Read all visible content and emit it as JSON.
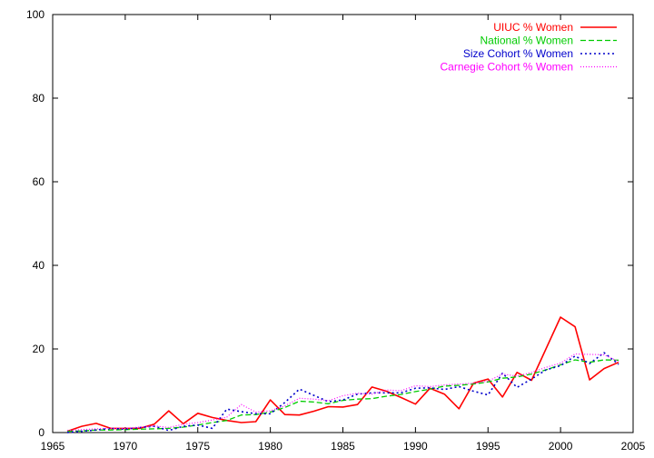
{
  "chart_data": {
    "type": "line",
    "xlim": [
      1965,
      2005
    ],
    "ylim": [
      0,
      100
    ],
    "x_ticks": [
      1965,
      1970,
      1975,
      1980,
      1985,
      1990,
      1995,
      2000,
      2005
    ],
    "y_ticks": [
      0,
      20,
      40,
      60,
      80,
      100
    ],
    "grid": false,
    "legend_position": "top-right",
    "series": [
      {
        "name": "UIUC % Women",
        "color": "#ff0000",
        "dash": "solid",
        "x": [
          1966,
          1967,
          1968,
          1969,
          1970,
          1971,
          1972,
          1973,
          1974,
          1975,
          1976,
          1977,
          1978,
          1979,
          1980,
          1981,
          1982,
          1983,
          1984,
          1985,
          1986,
          1987,
          1988,
          1989,
          1990,
          1991,
          1992,
          1993,
          1994,
          1995,
          1996,
          1997,
          1998,
          1999,
          2000,
          2001,
          2002,
          2003,
          2004
        ],
        "y": [
          0.3,
          1.5,
          2.2,
          1.0,
          1.0,
          1.0,
          2.0,
          5.2,
          2.1,
          4.6,
          3.6,
          2.9,
          2.4,
          2.6,
          7.8,
          4.3,
          4.2,
          5.1,
          6.2,
          6.1,
          6.7,
          10.9,
          9.9,
          8.4,
          6.8,
          10.6,
          9.2,
          5.7,
          11.8,
          12.8,
          8.5,
          14.4,
          12.5,
          null,
          27.6,
          25.3,
          12.6,
          15.3,
          16.8
        ]
      },
      {
        "name": "National % Women",
        "color": "#00cc00",
        "dash": "dashed",
        "x": [
          1966,
          1967,
          1968,
          1969,
          1970,
          1971,
          1972,
          1973,
          1974,
          1975,
          1976,
          1977,
          1978,
          1979,
          1980,
          1981,
          1982,
          1983,
          1984,
          1985,
          1986,
          1987,
          1988,
          1989,
          1990,
          1991,
          1992,
          1993,
          1994,
          1995,
          1996,
          1997,
          1998,
          1999,
          2000,
          2001,
          2002,
          2003,
          2004
        ],
        "y": [
          0.3,
          0.4,
          0.6,
          0.6,
          0.7,
          0.8,
          0.9,
          1.0,
          1.3,
          1.8,
          2.4,
          2.9,
          4.2,
          4.3,
          4.9,
          6.0,
          7.5,
          7.3,
          6.9,
          7.7,
          8.0,
          8.1,
          8.7,
          9.1,
          9.8,
          10.4,
          11.1,
          11.3,
          11.6,
          12.1,
          13.0,
          13.3,
          14.0,
          15.0,
          16.2,
          17.4,
          16.8,
          17.4,
          17.3
        ]
      },
      {
        "name": "Size Cohort % Women",
        "color": "#0000cc",
        "dash": "dotted",
        "x": [
          1966,
          1967,
          1968,
          1969,
          1970,
          1971,
          1972,
          1973,
          1974,
          1975,
          1976,
          1977,
          1978,
          1979,
          1980,
          1981,
          1982,
          1983,
          1984,
          1985,
          1986,
          1987,
          1988,
          1989,
          1990,
          1991,
          1992,
          1993,
          1994,
          1995,
          1996,
          1997,
          1998,
          1999,
          2000,
          2001,
          2002,
          2003,
          2004
        ],
        "y": [
          0.0,
          0.3,
          0.6,
          1.0,
          0.8,
          1.2,
          1.5,
          0.5,
          1.5,
          1.8,
          1.0,
          5.6,
          5.0,
          4.5,
          4.5,
          7.2,
          10.4,
          8.9,
          7.4,
          7.8,
          9.2,
          9.5,
          9.5,
          9.5,
          10.6,
          10.7,
          10.3,
          11.0,
          9.9,
          9.0,
          14.2,
          10.8,
          12.8,
          15.0,
          16.0,
          18.3,
          16.5,
          19.1,
          16.3
        ]
      },
      {
        "name": "Carnegie Cohort % Women",
        "color": "#ff00ff",
        "dash": "dotted-fine",
        "x": [
          1966,
          1967,
          1968,
          1969,
          1970,
          1971,
          1972,
          1973,
          1974,
          1975,
          1976,
          1977,
          1978,
          1979,
          1980,
          1981,
          1982,
          1983,
          1984,
          1985,
          1986,
          1987,
          1988,
          1989,
          1990,
          1991,
          1992,
          1993,
          1994,
          1995,
          1996,
          1997,
          1998,
          1999,
          2000,
          2001,
          2002,
          2003,
          2004
        ],
        "y": [
          0.5,
          0.7,
          0.9,
          1.0,
          1.0,
          1.3,
          1.6,
          1.2,
          2.0,
          2.4,
          3.0,
          3.7,
          6.7,
          4.9,
          5.2,
          6.4,
          8.2,
          8.0,
          7.6,
          8.8,
          9.4,
          9.2,
          10.2,
          10.0,
          11.2,
          11.0,
          11.4,
          11.6,
          11.8,
          12.3,
          14.0,
          13.5,
          14.4,
          15.6,
          16.6,
          18.8,
          18.7,
          18.6,
          17.0
        ]
      }
    ]
  }
}
